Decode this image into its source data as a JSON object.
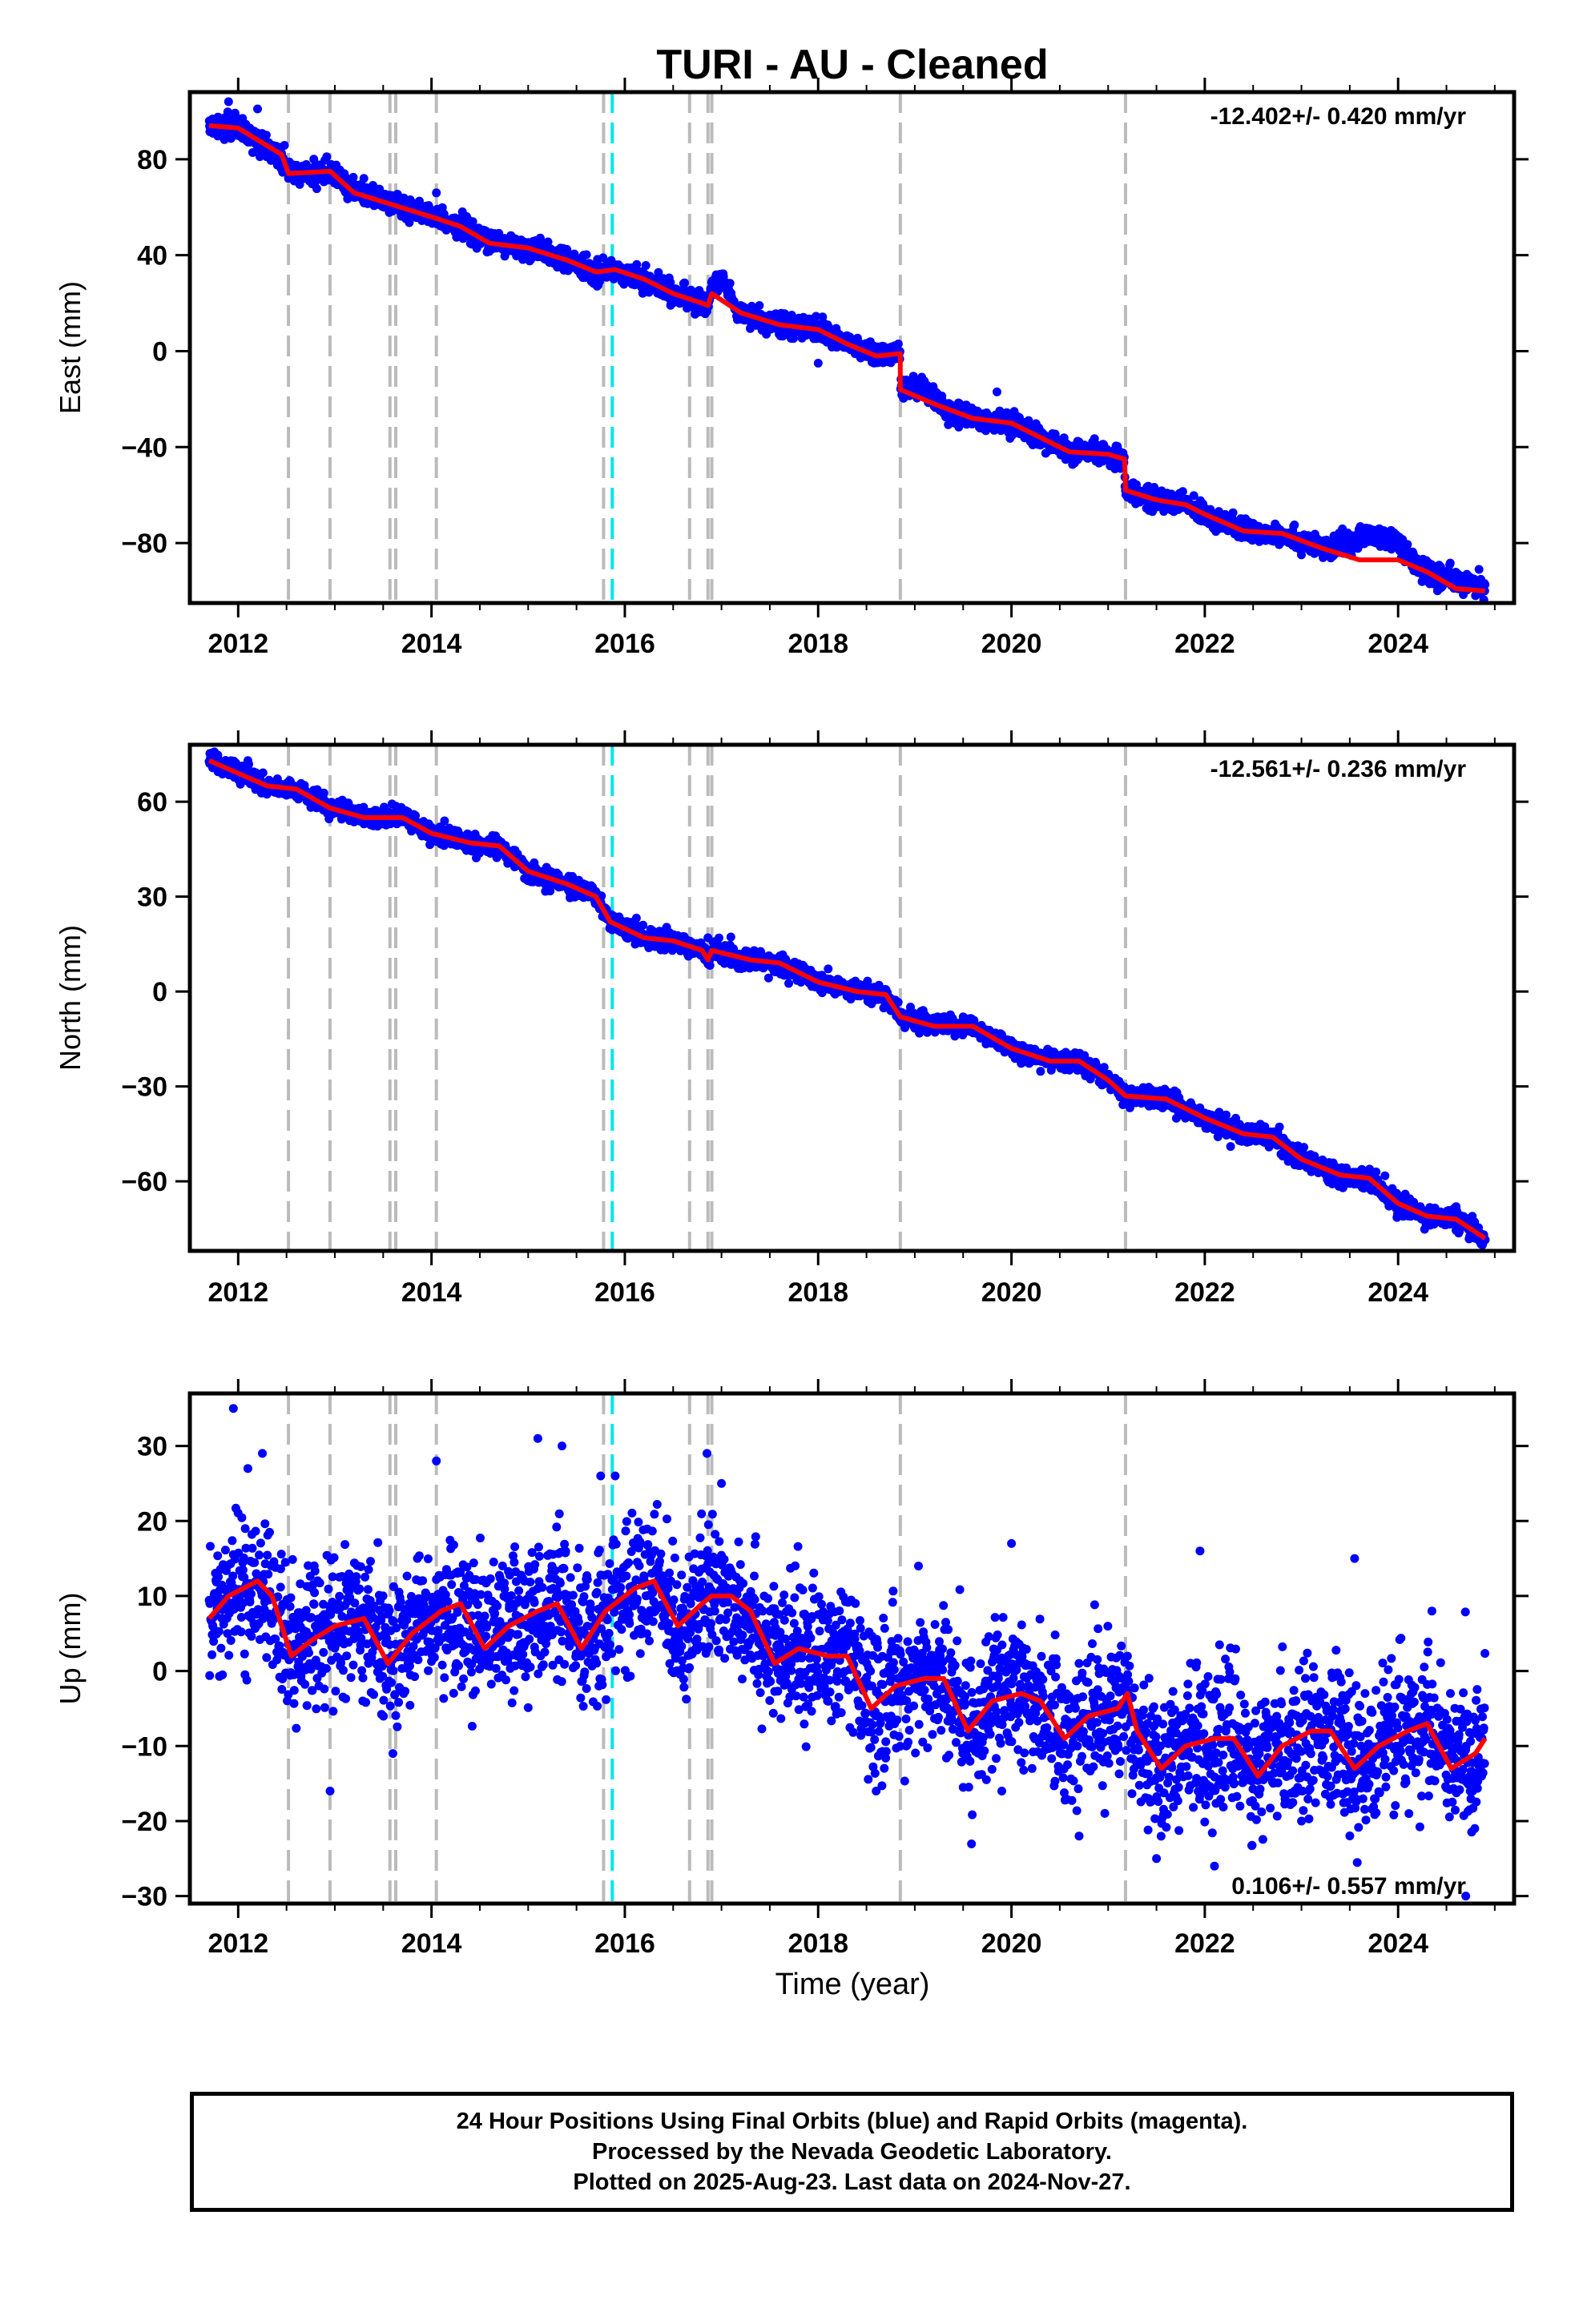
{
  "chart_data": {
    "type": "scatter",
    "title": "TURI  - AU - Cleaned",
    "xlabel": "Time (year)",
    "x_ticks": [
      "2012",
      "2014",
      "2016",
      "2018",
      "2020",
      "2022",
      "2024"
    ],
    "xlim": [
      2011.5,
      2025.2
    ],
    "colors": {
      "points": "#0000ff",
      "model": "#ff0000",
      "steps_gray": "#bbbbbb",
      "steps_cyan": "#00e5ee"
    },
    "step_lines_gray": [
      2012.52,
      2012.95,
      2013.57,
      2013.63,
      2014.05,
      2015.78,
      2016.67,
      2016.86,
      2016.9,
      2018.85,
      2021.18
    ],
    "step_lines_cyan": [
      2015.87
    ],
    "panels": [
      {
        "name": "East",
        "ylabel": "East (mm)",
        "ylim": [
          -105,
          108
        ],
        "y_ticks": [
          "80",
          "40",
          "0",
          "−40",
          "−80"
        ],
        "rate_label": "-12.402+/- 0.420 mm/yr",
        "model": [
          [
            2011.7,
            94
          ],
          [
            2012.0,
            93
          ],
          [
            2012.45,
            82
          ],
          [
            2012.52,
            74
          ],
          [
            2012.95,
            75
          ],
          [
            2013.2,
            66
          ],
          [
            2013.6,
            61
          ],
          [
            2014.0,
            56
          ],
          [
            2014.3,
            52
          ],
          [
            2014.6,
            45
          ],
          [
            2015.0,
            43
          ],
          [
            2015.4,
            38
          ],
          [
            2015.7,
            33
          ],
          [
            2015.9,
            34
          ],
          [
            2016.2,
            30
          ],
          [
            2016.5,
            24
          ],
          [
            2016.8,
            20
          ],
          [
            2016.86,
            19
          ],
          [
            2016.9,
            24
          ],
          [
            2017.2,
            16
          ],
          [
            2017.6,
            11
          ],
          [
            2018.0,
            9
          ],
          [
            2018.3,
            3
          ],
          [
            2018.6,
            -2
          ],
          [
            2018.85,
            -1
          ],
          [
            2018.85,
            -16
          ],
          [
            2019.2,
            -22
          ],
          [
            2019.6,
            -28
          ],
          [
            2020.0,
            -30
          ],
          [
            2020.3,
            -36
          ],
          [
            2020.6,
            -42
          ],
          [
            2021.0,
            -43
          ],
          [
            2021.17,
            -45
          ],
          [
            2021.18,
            -58
          ],
          [
            2021.5,
            -62
          ],
          [
            2021.8,
            -64
          ],
          [
            2022.0,
            -68
          ],
          [
            2022.4,
            -75
          ],
          [
            2022.8,
            -76
          ],
          [
            2023.2,
            -82
          ],
          [
            2023.6,
            -87
          ],
          [
            2024.0,
            -87
          ],
          [
            2024.3,
            -92
          ],
          [
            2024.6,
            -99
          ],
          [
            2024.9,
            -100
          ]
        ],
        "offsets": [
          [
            2016.86,
            2017.15,
            8
          ],
          [
            2018.85,
            2019.3,
            4
          ],
          [
            2023.3,
            2024.2,
            10
          ],
          [
            2024.4,
            2024.9,
            4
          ]
        ],
        "noise": 2.2,
        "outliers": [
          [
            2011.9,
            104
          ],
          [
            2012.2,
            101
          ],
          [
            2013.3,
            72
          ],
          [
            2014.05,
            66
          ],
          [
            2018.0,
            -5
          ],
          [
            2019.85,
            -17
          ],
          [
            2016.95,
            30
          ],
          [
            2014.3,
            48
          ]
        ]
      },
      {
        "name": "North",
        "ylabel": "North (mm)",
        "ylim": [
          -82,
          78
        ],
        "y_ticks": [
          "60",
          "30",
          "0",
          "−30",
          "−60"
        ],
        "rate_label": "-12.561+/- 0.236 mm/yr",
        "model": [
          [
            2011.7,
            73
          ],
          [
            2012.0,
            69
          ],
          [
            2012.3,
            65
          ],
          [
            2012.6,
            64
          ],
          [
            2012.95,
            58
          ],
          [
            2013.3,
            55
          ],
          [
            2013.7,
            55
          ],
          [
            2014.0,
            50
          ],
          [
            2014.4,
            47
          ],
          [
            2014.7,
            46
          ],
          [
            2015.0,
            38
          ],
          [
            2015.4,
            34
          ],
          [
            2015.7,
            30
          ],
          [
            2015.85,
            22
          ],
          [
            2016.2,
            17
          ],
          [
            2016.5,
            16
          ],
          [
            2016.8,
            13
          ],
          [
            2016.86,
            10
          ],
          [
            2016.9,
            13
          ],
          [
            2017.3,
            10
          ],
          [
            2017.6,
            9
          ],
          [
            2018.0,
            3
          ],
          [
            2018.4,
            0
          ],
          [
            2018.7,
            -1
          ],
          [
            2018.85,
            -8
          ],
          [
            2019.2,
            -11
          ],
          [
            2019.6,
            -11
          ],
          [
            2020.0,
            -18
          ],
          [
            2020.4,
            -22
          ],
          [
            2020.7,
            -22
          ],
          [
            2021.0,
            -28
          ],
          [
            2021.18,
            -33
          ],
          [
            2021.6,
            -34
          ],
          [
            2022.0,
            -40
          ],
          [
            2022.4,
            -45
          ],
          [
            2022.7,
            -46
          ],
          [
            2023.0,
            -53
          ],
          [
            2023.4,
            -58
          ],
          [
            2023.7,
            -59
          ],
          [
            2024.0,
            -67
          ],
          [
            2024.3,
            -71
          ],
          [
            2024.6,
            -72
          ],
          [
            2024.9,
            -78
          ]
        ],
        "offsets": [],
        "noise": 1.5,
        "outliers": [
          [
            2016.86,
            17
          ],
          [
            2012.1,
            73
          ],
          [
            2019.5,
            -8
          ],
          [
            2024.6,
            -68
          ]
        ]
      },
      {
        "name": "Up",
        "ylabel": "Up (mm)",
        "ylim": [
          -31,
          37
        ],
        "y_ticks": [
          "30",
          "20",
          "10",
          "0",
          "−10",
          "−20",
          "−30"
        ],
        "rate_label": "0.106+/- 0.557 mm/yr",
        "model": [
          [
            2011.7,
            7
          ],
          [
            2011.9,
            10
          ],
          [
            2012.2,
            12
          ],
          [
            2012.35,
            10
          ],
          [
            2012.55,
            2
          ],
          [
            2012.75,
            4
          ],
          [
            2013.0,
            6
          ],
          [
            2013.3,
            7
          ],
          [
            2013.55,
            1
          ],
          [
            2013.8,
            5
          ],
          [
            2014.1,
            8
          ],
          [
            2014.3,
            9
          ],
          [
            2014.55,
            3
          ],
          [
            2014.8,
            6
          ],
          [
            2015.1,
            8
          ],
          [
            2015.3,
            9
          ],
          [
            2015.55,
            3
          ],
          [
            2015.8,
            8
          ],
          [
            2016.1,
            11
          ],
          [
            2016.3,
            12
          ],
          [
            2016.55,
            6
          ],
          [
            2016.8,
            9
          ],
          [
            2016.9,
            10
          ],
          [
            2017.1,
            10
          ],
          [
            2017.3,
            8
          ],
          [
            2017.55,
            1
          ],
          [
            2017.8,
            3
          ],
          [
            2018.1,
            2
          ],
          [
            2018.3,
            2
          ],
          [
            2018.55,
            -5
          ],
          [
            2018.8,
            -2
          ],
          [
            2019.1,
            -1
          ],
          [
            2019.3,
            -1
          ],
          [
            2019.55,
            -8
          ],
          [
            2019.8,
            -4
          ],
          [
            2020.1,
            -3
          ],
          [
            2020.3,
            -4
          ],
          [
            2020.55,
            -9
          ],
          [
            2020.8,
            -6
          ],
          [
            2021.1,
            -5
          ],
          [
            2021.2,
            -3
          ],
          [
            2021.3,
            -8
          ],
          [
            2021.55,
            -13
          ],
          [
            2021.8,
            -10
          ],
          [
            2022.1,
            -9
          ],
          [
            2022.3,
            -9
          ],
          [
            2022.55,
            -14
          ],
          [
            2022.8,
            -10
          ],
          [
            2023.1,
            -8
          ],
          [
            2023.3,
            -8
          ],
          [
            2023.55,
            -13
          ],
          [
            2023.8,
            -10
          ],
          [
            2024.1,
            -8
          ],
          [
            2024.3,
            -7
          ],
          [
            2024.55,
            -13
          ],
          [
            2024.8,
            -11
          ],
          [
            2024.9,
            -9
          ]
        ],
        "offsets": [],
        "noise": 4.6,
        "outliers": [
          [
            2011.95,
            35
          ],
          [
            2012.1,
            27
          ],
          [
            2012.25,
            29
          ],
          [
            2014.05,
            28
          ],
          [
            2015.1,
            31
          ],
          [
            2015.35,
            30
          ],
          [
            2015.75,
            26
          ],
          [
            2015.9,
            26
          ],
          [
            2016.85,
            29
          ],
          [
            2017.0,
            25
          ],
          [
            2020.0,
            17
          ],
          [
            2021.95,
            16
          ],
          [
            2023.55,
            15
          ],
          [
            2024.35,
            8
          ],
          [
            2012.95,
            -16
          ],
          [
            2018.6,
            -16
          ],
          [
            2019.9,
            -16
          ],
          [
            2020.7,
            -22
          ],
          [
            2021.5,
            -25
          ],
          [
            2022.1,
            -26
          ],
          [
            2023.0,
            -20
          ],
          [
            2024.7,
            -30
          ],
          [
            2013.6,
            -11
          ]
        ]
      }
    ]
  },
  "footer": {
    "line1": "24 Hour Positions Using Final Orbits (blue) and Rapid Orbits (magenta).",
    "line2": "Processed by the Nevada Geodetic Laboratory.",
    "line3": "Plotted on 2025-Aug-23. Last data on 2024-Nov-27."
  }
}
